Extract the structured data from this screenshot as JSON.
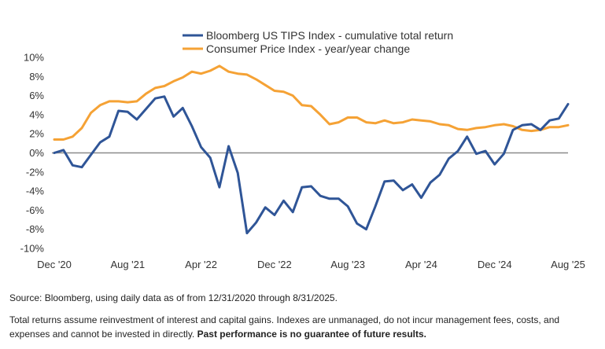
{
  "chart_data": {
    "type": "line",
    "title": "",
    "xlabel": "",
    "ylabel": "",
    "x_tick_labels": [
      "Dec '20",
      "Aug '21",
      "Apr '22",
      "Dec '22",
      "Aug '23",
      "Apr '24",
      "Dec '24",
      "Aug '25"
    ],
    "y_tick_labels": [
      "10%",
      "8%",
      "6%",
      "4%",
      "2%",
      "0%",
      "-2%",
      "-4%",
      "-6%",
      "-8%",
      "-10%"
    ],
    "ylim": [
      -10,
      10
    ],
    "x_range_months": [
      "Dec '20",
      "Aug '25"
    ],
    "grid": false,
    "zero_line": true,
    "legend_position": "top",
    "series": [
      {
        "name": "Bloomberg US TIPS Index - cumulative total return",
        "color": "#2f5597",
        "values": [
          0.0,
          0.3,
          -1.3,
          -1.5,
          -0.2,
          1.1,
          1.7,
          4.4,
          4.3,
          3.5,
          4.6,
          5.7,
          5.9,
          3.8,
          4.7,
          2.8,
          0.6,
          -0.5,
          -3.6,
          0.7,
          -2.1,
          -8.4,
          -7.3,
          -5.7,
          -6.5,
          -5.0,
          -6.2,
          -3.6,
          -3.5,
          -4.5,
          -4.8,
          -4.8,
          -5.6,
          -7.4,
          -8.0,
          -5.6,
          -3.0,
          -2.9,
          -3.9,
          -3.3,
          -4.7,
          -3.1,
          -2.3,
          -0.6,
          0.2,
          1.7,
          -0.1,
          0.2,
          -1.2,
          -0.1,
          2.4,
          2.9,
          3.0,
          2.4,
          3.4,
          3.6,
          5.1
        ]
      },
      {
        "name": "Consumer Price Index - year/year change",
        "color": "#f5a235",
        "values": [
          1.4,
          1.4,
          1.7,
          2.6,
          4.2,
          5.0,
          5.4,
          5.4,
          5.3,
          5.4,
          6.2,
          6.8,
          7.0,
          7.5,
          7.9,
          8.5,
          8.3,
          8.6,
          9.1,
          8.5,
          8.3,
          8.2,
          7.7,
          7.1,
          6.5,
          6.4,
          6.0,
          5.0,
          4.9,
          4.0,
          3.0,
          3.2,
          3.7,
          3.7,
          3.2,
          3.1,
          3.4,
          3.1,
          3.2,
          3.5,
          3.4,
          3.3,
          3.0,
          2.9,
          2.5,
          2.4,
          2.6,
          2.7,
          2.9,
          3.0,
          2.8,
          2.4,
          2.3,
          2.4,
          2.7,
          2.7,
          2.9
        ]
      }
    ]
  },
  "notes": {
    "source": "Source: Bloomberg, using daily data as of from 12/31/2020 through 8/31/2025.",
    "disclaimer": "Total returns assume reinvestment of interest and capital gains. Indexes are unmanaged, do not incur management fees, costs, and expenses and cannot be invested in directly.",
    "disclaimer_bold": "Past performance is no guarantee of future results."
  }
}
